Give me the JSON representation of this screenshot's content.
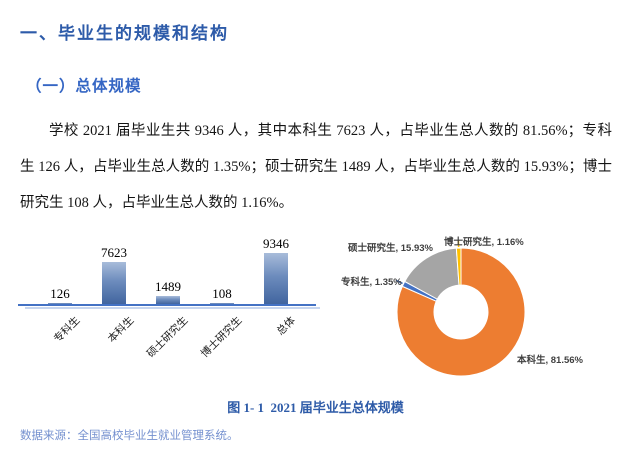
{
  "page": {
    "heading": "一、毕业生的规模和结构",
    "subheading": "（一）总体规模",
    "paragraph": "学校 2021 届毕业生共 9346 人，其中本科生 7623 人，占毕业生总人数的 81.56%；专科生 126 人，占毕业生总人数的 1.35%；硕士研究生 1489 人，占毕业生总人数的 15.93%；博士研究生 108 人，占毕业生总人数的 1.16%。",
    "figure_caption": "图 1- 1  2021 届毕业生总体规模",
    "data_source": "数据来源：全国高校毕业生就业管理系统。"
  },
  "colors": {
    "heading_blue": "#2d5ba9",
    "subheading_blue": "#3566c4",
    "caption_blue": "#2e5ba8",
    "source_blue": "#7490cf",
    "axis_blue": "#4472c4",
    "axis_shadow_blue": "#c7d6ef",
    "bar_gradient_top": "#a8bcda",
    "bar_gradient_bottom": "#41659f"
  },
  "chart_data": [
    {
      "type": "bar",
      "title": "",
      "categories": [
        "专科生",
        "本科生",
        "硕士研究生",
        "博士研究生",
        "总体"
      ],
      "values": [
        126,
        7623,
        1489,
        108,
        9346
      ],
      "data_labels": [
        "126",
        "7623",
        "1489",
        "108",
        "9346"
      ],
      "xlabel": "",
      "ylabel": "",
      "ylim": [
        0,
        9346
      ],
      "grid": false,
      "legend": false,
      "data_label_position": "above-bar",
      "category_label_rotation": -45
    },
    {
      "type": "pie",
      "donut": true,
      "labels": [
        "本科生",
        "专科生",
        "硕士研究生",
        "博士研究生"
      ],
      "values": [
        81.56,
        1.35,
        15.93,
        1.16
      ],
      "colors": [
        "#ED7D31",
        "#4472C4",
        "#A5A5A5",
        "#FFC000"
      ],
      "slice_labels": [
        "本科生, 81.56%",
        "专科生, 1.35%",
        "硕士研究生, 15.93%",
        "博士研究生, 1.16%"
      ],
      "legend": false,
      "label_position": "outside",
      "start_angle_deg": 0,
      "direction": "clockwise"
    }
  ]
}
